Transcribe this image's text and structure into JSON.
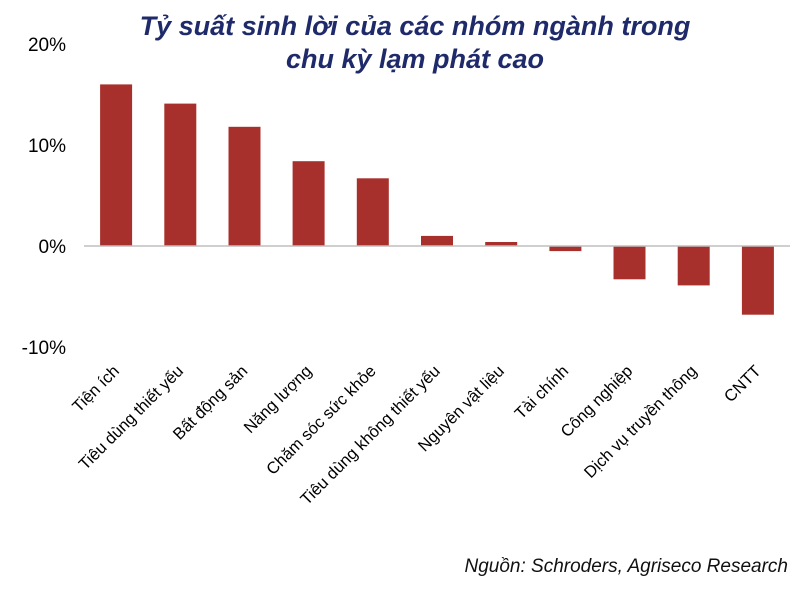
{
  "chart_data": {
    "type": "bar",
    "title_lines": [
      "Tỷ suất sinh lời của các nhóm ngành trong",
      "chu kỳ lạm phát cao"
    ],
    "categories": [
      "Tiện ích",
      "Tiêu dùng thiết yếu",
      "Bất động sản",
      "Năng lượng",
      "Chăm sóc sức khỏe",
      "Tiêu dùng không thiết yếu",
      "Nguyên vật liệu",
      "Tài chính",
      "Công nghiệp",
      "Dịch vụ truyền thông",
      "CNTT"
    ],
    "values": [
      16.0,
      14.1,
      11.8,
      8.4,
      6.7,
      1.0,
      0.4,
      -0.5,
      -3.3,
      -3.9,
      -6.8
    ],
    "unit": "%",
    "ylim": [
      -10,
      20
    ],
    "yticks": [
      20,
      10,
      0,
      -10
    ],
    "ytick_labels": [
      "20%",
      "10%",
      "0%",
      "-10%"
    ],
    "bar_color": "#a8302c",
    "title_color": "#1f2a6b",
    "grid": false,
    "legend": "none",
    "xlabel": "",
    "ylabel": ""
  },
  "source": "Nguồn: Schroders, Agriseco Research"
}
